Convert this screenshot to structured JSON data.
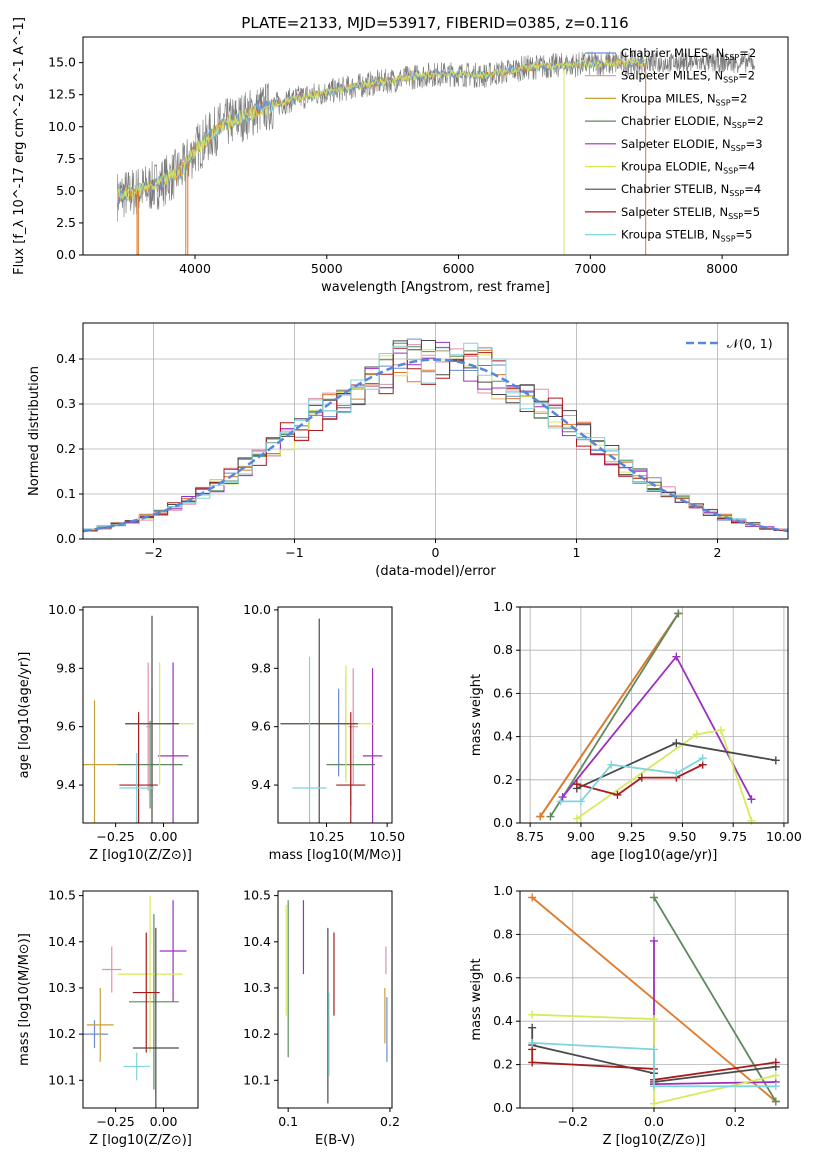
{
  "figure_title": "PLATE=2133, MJD=53917, FIBERID=0385, z=0.116",
  "colors": {
    "chabrier_miles": "#6a8cd1",
    "salpeter_miles": "#e58fae",
    "kroupa_miles": "#c9a03a",
    "chabrier_elodie": "#5e8a5e",
    "salpeter_elodie": "#9b30c0",
    "kroupa_elodie": "#d7ea5a",
    "chabrier_stelib": "#4a4a4a",
    "salpeter_stelib": "#a81c1c",
    "kroupa_stelib": "#80d4dc",
    "data": "#7a7a7a",
    "normal": "#5588dd",
    "orange": "#e07a2a"
  },
  "chart_data": [
    {
      "id": "spectrum",
      "type": "line",
      "xlabel": "wavelength [Angstrom, rest frame]",
      "ylabel": "Flux [f_λ 10^-17 erg cm^-2 s^-1 A^-1]",
      "xlim": [
        3150,
        8500
      ],
      "ylim": [
        0,
        17
      ],
      "xticks": [
        4000,
        5000,
        6000,
        7000,
        8000
      ],
      "yticks": [
        0.0,
        2.5,
        5.0,
        7.5,
        10.0,
        12.5,
        15.0
      ],
      "legend_position": "upper-right",
      "continuum": {
        "x": [
          3400,
          3500,
          3700,
          3900,
          4000,
          4200,
          4500,
          4800,
          5000,
          5300,
          5600,
          5800,
          6000,
          6200,
          6500,
          6800,
          7000,
          7300
        ],
        "y": [
          4.6,
          4.8,
          5.4,
          6.6,
          8.2,
          10.1,
          11.4,
          12.3,
          12.7,
          13.3,
          13.8,
          14.1,
          14.1,
          14.0,
          14.6,
          14.8,
          14.9,
          15.0
        ]
      },
      "series": [
        {
          "label": "Chabrier MILES, N",
          "sub": "SSP",
          "n": "=2"
        },
        {
          "label": "Salpeter MILES, N",
          "sub": "SSP",
          "n": "=2"
        },
        {
          "label": "Kroupa MILES, N",
          "sub": "SSP",
          "n": "=2"
        },
        {
          "label": "Chabrier ELODIE, N",
          "sub": "SSP",
          "n": "=2"
        },
        {
          "label": "Salpeter ELODIE, N",
          "sub": "SSP",
          "n": "=3"
        },
        {
          "label": "Kroupa ELODIE, N",
          "sub": "SSP",
          "n": "=4"
        },
        {
          "label": "Chabrier STELIB, N",
          "sub": "SSP",
          "n": "=4"
        },
        {
          "label": "Salpeter STELIB, N",
          "sub": "SSP",
          "n": "=5"
        },
        {
          "label": "Kroupa STELIB, N",
          "sub": "SSP",
          "n": "=5"
        }
      ]
    },
    {
      "id": "residuals",
      "type": "area",
      "xlabel": "(data-model)/error",
      "ylabel": "Normed distribution",
      "xlim": [
        -2.5,
        2.5
      ],
      "ylim": [
        0,
        0.48
      ],
      "xticks": [
        -2,
        -1,
        0,
        1,
        2
      ],
      "yticks": [
        0.0,
        0.1,
        0.2,
        0.3,
        0.4
      ],
      "legend": "𝒩(0, 1)",
      "legend_position": "upper-right",
      "grid": true
    },
    {
      "id": "age_vs_Z",
      "type": "scatter",
      "xlabel": "Z [log10(Z/Z⊙)]",
      "ylabel": "age  [log10(age/yr)]",
      "xlim": [
        -0.42,
        0.18
      ],
      "ylim": [
        9.27,
        10.01
      ],
      "xticks": [
        -0.25,
        0.0
      ],
      "yticks": [
        9.4,
        9.6,
        9.8,
        10.0
      ],
      "points": [
        {
          "c": "chabrier_miles",
          "x": -0.06,
          "xe": 0.0,
          "y": 9.55,
          "ye": 0.18
        },
        {
          "c": "salpeter_miles",
          "x": -0.08,
          "xe": 0.01,
          "y": 9.6,
          "ye": 0.22
        },
        {
          "c": "kroupa_miles",
          "x": -0.36,
          "xe": 0.12,
          "y": 9.47,
          "ye": 0.22
        },
        {
          "c": "chabrier_elodie",
          "x": -0.07,
          "xe": 0.17,
          "y": 9.47,
          "ye": 0.15
        },
        {
          "c": "salpeter_elodie",
          "x": 0.05,
          "xe": 0.08,
          "y": 9.5,
          "ye": 0.32
        },
        {
          "c": "kroupa_elodie",
          "x": -0.02,
          "xe": 0.18,
          "y": 9.61,
          "ye": 0.21
        },
        {
          "c": "chabrier_stelib",
          "x": -0.06,
          "xe": 0.14,
          "y": 9.61,
          "ye": 0.37
        },
        {
          "c": "salpeter_stelib",
          "x": -0.13,
          "xe": 0.1,
          "y": 9.4,
          "ye": 0.25
        },
        {
          "c": "kroupa_stelib",
          "x": -0.14,
          "xe": 0.09,
          "y": 9.39,
          "ye": 0.12
        }
      ]
    },
    {
      "id": "age_vs_mass",
      "type": "scatter",
      "xlabel": "mass [log10(M/M⊙)]",
      "ylabel": "",
      "xlim": [
        10.05,
        10.52
      ],
      "ylim": [
        9.27,
        10.01
      ],
      "xticks": [
        10.25,
        10.5
      ],
      "yticks": [
        9.4,
        9.6,
        9.8,
        10.0
      ],
      "points": [
        {
          "c": "chabrier_miles",
          "x": 10.3,
          "xe": 0.0,
          "y": 9.58,
          "ye": 0.15
        },
        {
          "c": "salpeter_miles",
          "x": 10.36,
          "xe": 0.02,
          "y": 9.6,
          "ye": 0.2
        },
        {
          "c": "kroupa_miles",
          "x": 10.33,
          "xe": 0.0,
          "y": 9.6,
          "ye": 0.18
        },
        {
          "c": "chabrier_elodie",
          "x": 10.35,
          "xe": 0.1,
          "y": 9.47,
          "ye": 0.14
        },
        {
          "c": "salpeter_elodie",
          "x": 10.44,
          "xe": 0.04,
          "y": 9.5,
          "ye": 0.3
        },
        {
          "c": "kroupa_elodie",
          "x": 10.33,
          "xe": 0.12,
          "y": 9.61,
          "ye": 0.2
        },
        {
          "c": "chabrier_stelib",
          "x": 10.22,
          "xe": 0.16,
          "y": 9.61,
          "ye": 0.36
        },
        {
          "c": "salpeter_stelib",
          "x": 10.35,
          "xe": 0.06,
          "y": 9.4,
          "ye": 0.25
        },
        {
          "c": "kroupa_stelib",
          "x": 10.18,
          "xe": 0.07,
          "y": 9.39,
          "ye": 0.45
        }
      ]
    },
    {
      "id": "weight_vs_age",
      "type": "line",
      "xlabel": "age  [log10(age/yr)]",
      "ylabel": "mass weight",
      "xlim": [
        8.7,
        10.02
      ],
      "ylim": [
        0,
        1.0
      ],
      "xticks": [
        8.75,
        9.0,
        9.25,
        9.5,
        9.75,
        10.0
      ],
      "yticks": [
        0.0,
        0.2,
        0.4,
        0.6,
        0.8,
        1.0
      ],
      "grid": true,
      "series": [
        {
          "c": "chabrier_miles",
          "x": [
            8.8,
            9.48
          ],
          "y": [
            0.03,
            0.97
          ]
        },
        {
          "c": "kroupa_miles",
          "x": [
            8.8,
            9.48
          ],
          "y": [
            0.03,
            0.97
          ]
        },
        {
          "c": "orange",
          "x": [
            8.8,
            9.48
          ],
          "y": [
            0.03,
            0.97
          ]
        },
        {
          "c": "chabrier_elodie",
          "x": [
            8.85,
            9.48
          ],
          "y": [
            0.03,
            0.97
          ]
        },
        {
          "c": "salpeter_elodie",
          "x": [
            8.91,
            9.47,
            9.84
          ],
          "y": [
            0.12,
            0.77,
            0.11
          ]
        },
        {
          "c": "kroupa_elodie",
          "x": [
            8.98,
            9.57,
            9.69,
            9.84
          ],
          "y": [
            0.02,
            0.41,
            0.43,
            0.01
          ]
        },
        {
          "c": "chabrier_stelib",
          "x": [
            8.98,
            9.47,
            9.96
          ],
          "y": [
            0.16,
            0.37,
            0.29
          ]
        },
        {
          "c": "salpeter_stelib",
          "x": [
            8.98,
            9.18,
            9.3,
            9.47,
            9.6
          ],
          "y": [
            0.18,
            0.13,
            0.21,
            0.21,
            0.27
          ]
        },
        {
          "c": "kroupa_stelib",
          "x": [
            8.9,
            9.0,
            9.15,
            9.47,
            9.6
          ],
          "y": [
            0.1,
            0.1,
            0.27,
            0.23,
            0.3
          ]
        }
      ]
    },
    {
      "id": "mass_vs_Z",
      "type": "scatter",
      "xlabel": "Z [log10(Z/Z⊙)]",
      "ylabel": "mass [log10(M/M⊙)]",
      "xlim": [
        -0.42,
        0.18
      ],
      "ylim": [
        10.04,
        10.51
      ],
      "xticks": [
        -0.25,
        0.0
      ],
      "yticks": [
        10.1,
        10.2,
        10.3,
        10.4,
        10.5
      ],
      "points": [
        {
          "c": "chabrier_miles",
          "x": -0.36,
          "xe": 0.07,
          "y": 10.2,
          "ye": 0.03
        },
        {
          "c": "salpeter_miles",
          "x": -0.27,
          "xe": 0.05,
          "y": 10.34,
          "ye": 0.05
        },
        {
          "c": "kroupa_miles",
          "x": -0.33,
          "xe": 0.07,
          "y": 10.22,
          "ye": 0.08
        },
        {
          "c": "chabrier_elodie",
          "x": -0.05,
          "xe": 0.13,
          "y": 10.27,
          "ye": 0.19
        },
        {
          "c": "salpeter_elodie",
          "x": 0.05,
          "xe": 0.07,
          "y": 10.38,
          "ye": 0.11
        },
        {
          "c": "kroupa_elodie",
          "x": -0.07,
          "xe": 0.17,
          "y": 10.33,
          "ye": 0.17
        },
        {
          "c": "chabrier_stelib",
          "x": -0.04,
          "xe": 0.12,
          "y": 10.17,
          "ye": 0.26
        },
        {
          "c": "salpeter_stelib",
          "x": -0.09,
          "xe": 0.07,
          "y": 10.29,
          "ye": 0.13
        },
        {
          "c": "kroupa_stelib",
          "x": -0.14,
          "xe": 0.07,
          "y": 10.13,
          "ye": 0.03
        }
      ]
    },
    {
      "id": "mass_vs_ebv",
      "type": "scatter",
      "xlabel": "E(B-V)",
      "ylabel": "",
      "xlim": [
        0.09,
        0.202
      ],
      "ylim": [
        10.04,
        10.51
      ],
      "xticks": [
        0.1,
        0.2
      ],
      "yticks": [
        10.1,
        10.2,
        10.3,
        10.4,
        10.5
      ],
      "points": [
        {
          "c": "chabrier_miles",
          "x": 0.197,
          "xe": 0.0,
          "y": 10.21,
          "ye": 0.07
        },
        {
          "c": "salpeter_miles",
          "x": 0.196,
          "xe": 0.0,
          "y": 10.36,
          "ye": 0.03
        },
        {
          "c": "kroupa_miles",
          "x": 0.195,
          "xe": 0.0,
          "y": 10.24,
          "ye": 0.06
        },
        {
          "c": "chabrier_elodie",
          "x": 0.1,
          "xe": 0.0,
          "y": 10.32,
          "ye": 0.17
        },
        {
          "c": "salpeter_elodie",
          "x": 0.115,
          "xe": 0.0,
          "y": 10.41,
          "ye": 0.08
        },
        {
          "c": "kroupa_elodie",
          "x": 0.098,
          "xe": 0.0,
          "y": 10.36,
          "ye": 0.12
        },
        {
          "c": "chabrier_stelib",
          "x": 0.139,
          "xe": 0.0,
          "y": 10.24,
          "ye": 0.19
        },
        {
          "c": "salpeter_stelib",
          "x": 0.145,
          "xe": 0.0,
          "y": 10.33,
          "ye": 0.09
        },
        {
          "c": "kroupa_stelib",
          "x": 0.14,
          "xe": 0.0,
          "y": 10.2,
          "ye": 0.09
        }
      ]
    },
    {
      "id": "weight_vs_Z",
      "type": "line",
      "xlabel": "Z [log10(Z/Z⊙)]",
      "ylabel": "mass weight",
      "xlim": [
        -0.33,
        0.33
      ],
      "ylim": [
        0,
        1.0
      ],
      "xticks": [
        -0.2,
        0.0,
        0.2
      ],
      "yticks": [
        0.0,
        0.2,
        0.4,
        0.6,
        0.8,
        1.0
      ],
      "grid": true,
      "series": [
        {
          "c": "orange",
          "x": [
            -0.3,
            0.3
          ],
          "y": [
            0.97,
            0.03
          ]
        },
        {
          "c": "chabrier_elodie",
          "x": [
            0.0,
            0.3
          ],
          "y": [
            0.97,
            0.03
          ]
        },
        {
          "c": "salpeter_elodie",
          "x": [
            0.0,
            0.0,
            0.0,
            0.3
          ],
          "y": [
            0.77,
            0.11,
            0.11,
            0.12
          ]
        },
        {
          "c": "kroupa_elodie",
          "x": [
            -0.3,
            0.0,
            0.0,
            0.3
          ],
          "y": [
            0.43,
            0.41,
            0.02,
            0.15
          ]
        },
        {
          "c": "chabrier_stelib",
          "x": [
            -0.3,
            -0.3,
            0.0,
            0.0,
            0.3
          ],
          "y": [
            0.37,
            0.29,
            0.16,
            0.12,
            0.19
          ]
        },
        {
          "c": "salpeter_stelib",
          "x": [
            -0.3,
            -0.3,
            0.0,
            0.0,
            0.3
          ],
          "y": [
            0.27,
            0.21,
            0.18,
            0.13,
            0.21
          ]
        },
        {
          "c": "kroupa_stelib",
          "x": [
            -0.3,
            0.0,
            0.0,
            0.3
          ],
          "y": [
            0.3,
            0.27,
            0.1,
            0.1
          ]
        }
      ]
    }
  ]
}
